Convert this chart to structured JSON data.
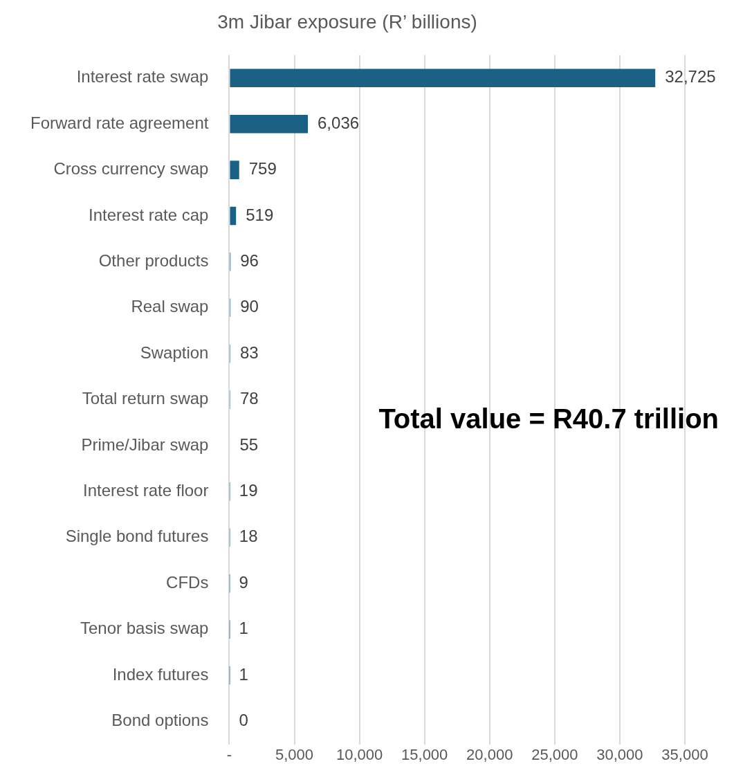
{
  "chart_data": {
    "type": "bar",
    "orientation": "horizontal",
    "title": "3m Jibar exposure (R’ billions)",
    "categories": [
      "Interest rate swap",
      "Forward rate agreement",
      "Cross currency swap",
      "Interest rate cap",
      "Other products",
      "Real swap",
      "Swaption",
      "Total return swap",
      "Prime/Jibar swap",
      "Interest rate floor",
      "Single bond futures",
      "CFDs",
      "Tenor basis swap",
      "Index futures",
      "Bond options"
    ],
    "values": [
      32725,
      6036,
      759,
      519,
      96,
      90,
      83,
      78,
      55,
      19,
      18,
      9,
      1,
      1,
      0
    ],
    "value_labels": [
      "32,725",
      "6,036",
      "759",
      "519",
      "96",
      "90",
      "83",
      "78",
      "55",
      "19",
      "18",
      "9",
      "1",
      "1",
      "0"
    ],
    "color": "#1a6185",
    "xlim": [
      0,
      35000
    ],
    "xticks": [
      {
        "value": 0,
        "label": "-"
      },
      {
        "value": 5000,
        "label": "5,000"
      },
      {
        "value": 10000,
        "label": "10,000"
      },
      {
        "value": 15000,
        "label": "15,000"
      },
      {
        "value": 20000,
        "label": "20,000"
      },
      {
        "value": 25000,
        "label": "25,000"
      },
      {
        "value": 30000,
        "label": "30,000"
      },
      {
        "value": 35000,
        "label": "35,000"
      }
    ],
    "grid": "x",
    "annotations": [
      "Total value = R40.7 trillion"
    ]
  }
}
